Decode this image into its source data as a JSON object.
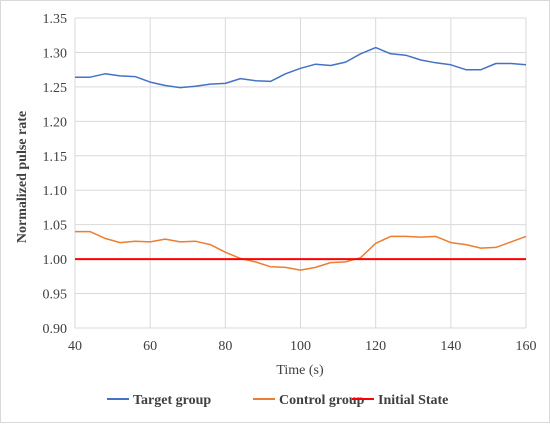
{
  "chart_data": {
    "type": "line",
    "title": "",
    "xlabel": "Time (s)",
    "ylabel": "Normalized pulse rate",
    "xlim": [
      40,
      160
    ],
    "ylim": [
      0.9,
      1.35
    ],
    "x_ticks": [
      40,
      60,
      80,
      100,
      120,
      140,
      160
    ],
    "y_ticks": [
      0.9,
      0.95,
      1.0,
      1.05,
      1.1,
      1.15,
      1.2,
      1.25,
      1.3,
      1.35
    ],
    "x_tick_labels": [
      "40",
      "60",
      "80",
      "100",
      "120",
      "140",
      "160"
    ],
    "y_tick_labels": [
      "0.90",
      "0.95",
      "1.00",
      "1.05",
      "1.10",
      "1.15",
      "1.20",
      "1.25",
      "1.30",
      "1.35"
    ],
    "grid": true,
    "legend_position": "bottom",
    "series": [
      {
        "name": "Target group",
        "color": "#4472c4",
        "x": [
          40,
          44,
          48,
          52,
          56,
          60,
          64,
          68,
          72,
          76,
          80,
          84,
          88,
          92,
          96,
          100,
          104,
          108,
          112,
          116,
          120,
          124,
          128,
          132,
          136,
          140,
          144,
          148,
          152,
          156,
          160
        ],
        "values": [
          1.264,
          1.264,
          1.269,
          1.266,
          1.265,
          1.257,
          1.252,
          1.249,
          1.251,
          1.254,
          1.255,
          1.262,
          1.259,
          1.258,
          1.269,
          1.277,
          1.283,
          1.281,
          1.286,
          1.298,
          1.307,
          1.298,
          1.296,
          1.289,
          1.285,
          1.282,
          1.275,
          1.275,
          1.284,
          1.284,
          1.282
        ]
      },
      {
        "name": "Control group",
        "color": "#ed7d31",
        "x": [
          40,
          44,
          48,
          52,
          56,
          60,
          64,
          68,
          72,
          76,
          80,
          84,
          88,
          92,
          96,
          100,
          104,
          108,
          112,
          116,
          120,
          124,
          128,
          132,
          136,
          140,
          144,
          148,
          152,
          156,
          160
        ],
        "values": [
          1.04,
          1.04,
          1.03,
          1.024,
          1.026,
          1.025,
          1.029,
          1.025,
          1.026,
          1.021,
          1.01,
          1.001,
          0.996,
          0.989,
          0.988,
          0.984,
          0.988,
          0.995,
          0.996,
          1.002,
          1.023,
          1.033,
          1.033,
          1.032,
          1.033,
          1.024,
          1.021,
          1.016,
          1.017,
          1.025,
          1.033
        ]
      },
      {
        "name": "Initial State",
        "color": "#ff0000",
        "x": [
          40,
          160
        ],
        "values": [
          1.0,
          1.0
        ]
      }
    ]
  }
}
